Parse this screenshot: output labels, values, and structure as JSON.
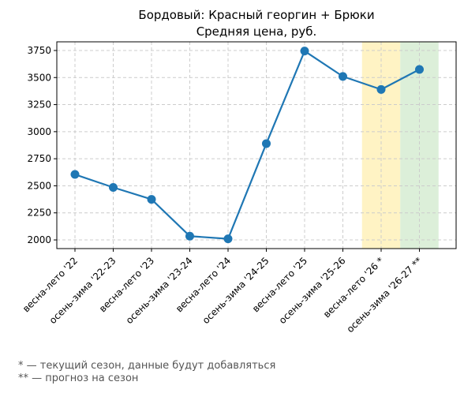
{
  "chart_data": {
    "type": "line",
    "title": "Бордовый: Красный георгин + Брюки",
    "subtitle": "Средняя цена, руб.",
    "xlabel": "",
    "ylabel": "",
    "categories": [
      "весна-лето '22",
      "осень-зима '22-23",
      "весна-лето '23",
      "осень-зима '23-24",
      "весна-лето '24",
      "осень-зима '24-25",
      "весна-лето '25",
      "осень-зима '25-26",
      "весна-лето '26 *",
      "осень-зима '26-27 **"
    ],
    "values": [
      2605,
      2485,
      2375,
      2035,
      2010,
      2890,
      3745,
      3510,
      3390,
      3575
    ],
    "ylim": [
      1920,
      3830
    ],
    "yticks": [
      2000,
      2250,
      2500,
      2750,
      3000,
      3250,
      3500,
      3750
    ],
    "grid": true,
    "line_color": "#1f77b4",
    "highlight_bands": [
      {
        "category_index": 8,
        "color": "#fff3c4"
      },
      {
        "category_index": 9,
        "color": "#dcefd9"
      }
    ]
  },
  "footnotes": {
    "line1": "* — текущий сезон, данные будут добавляться",
    "line2": "** — прогноз на сезон"
  }
}
